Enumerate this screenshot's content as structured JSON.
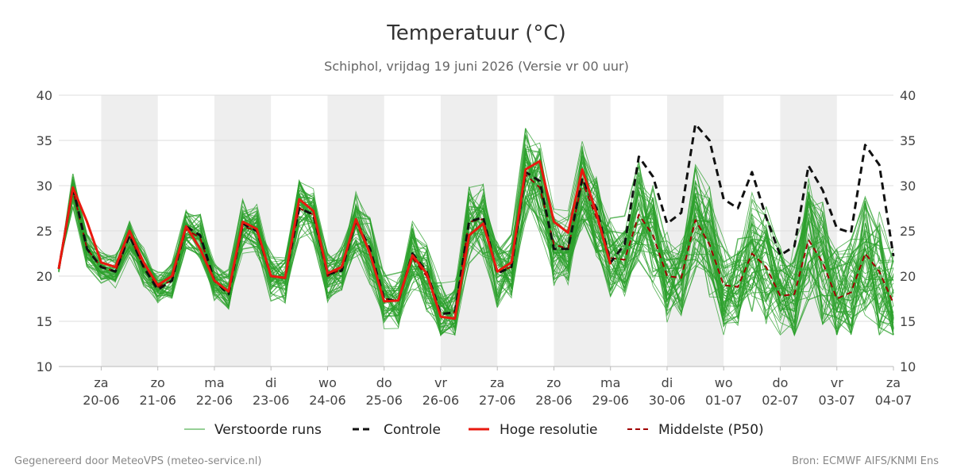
{
  "chart_data": {
    "type": "line",
    "title": "Temperatuur (°C)",
    "subtitle": "Schiphol, vrijdag 19 juni 2026 (Versie vr 00 uur)",
    "ylim": [
      10,
      40
    ],
    "yticks": [
      10,
      15,
      20,
      25,
      30,
      35,
      40
    ],
    "grid": true,
    "legend_position": "bottom",
    "x_start": "2026-06-19T06:00",
    "x_end": "2026-07-04T00:00",
    "time_step_hours": 6,
    "day_ticks": [
      {
        "day": "za",
        "date": "20-06"
      },
      {
        "day": "zo",
        "date": "21-06"
      },
      {
        "day": "ma",
        "date": "22-06"
      },
      {
        "day": "di",
        "date": "23-06"
      },
      {
        "day": "wo",
        "date": "24-06"
      },
      {
        "day": "do",
        "date": "25-06"
      },
      {
        "day": "vr",
        "date": "26-06"
      },
      {
        "day": "za",
        "date": "27-06"
      },
      {
        "day": "zo",
        "date": "28-06"
      },
      {
        "day": "ma",
        "date": "29-06"
      },
      {
        "day": "di",
        "date": "30-06"
      },
      {
        "day": "wo",
        "date": "01-07"
      },
      {
        "day": "do",
        "date": "02-07"
      },
      {
        "day": "vr",
        "date": "03-07"
      },
      {
        "day": "za",
        "date": "04-07"
      }
    ],
    "series": [
      {
        "name": "Controle",
        "color": "#111111",
        "style": "dashed",
        "values": [
          20.8,
          29.8,
          23.0,
          21.0,
          20.5,
          24.5,
          21.0,
          18.5,
          19.5,
          25.5,
          24.5,
          19.5,
          18.0,
          25.8,
          25.0,
          20.0,
          19.8,
          27.5,
          26.8,
          20.2,
          20.6,
          26.2,
          23.0,
          17.5,
          17.2,
          22.5,
          20.5,
          15.8,
          16.0,
          26.0,
          26.5,
          20.3,
          21.0,
          31.5,
          30.5,
          23.0,
          23.0,
          30.8,
          27.5,
          21.5,
          23.5,
          33.2,
          31.0,
          25.8,
          27.0,
          36.8,
          35.0,
          28.5,
          27.5,
          31.5,
          26.5,
          22.3,
          23.3,
          32.2,
          29.5,
          25.3,
          24.8,
          34.5,
          32.3,
          22.2
        ]
      },
      {
        "name": "Hoge resolutie",
        "color": "#e8190f",
        "style": "solid",
        "values": [
          20.8,
          29.8,
          26.0,
          21.5,
          21.0,
          25.0,
          21.5,
          19.0,
          20.0,
          25.5,
          23.0,
          19.5,
          18.3,
          26.0,
          25.2,
          20.0,
          19.8,
          28.5,
          27.2,
          20.3,
          21.0,
          26.3,
          22.5,
          17.2,
          17.3,
          22.3,
          20.3,
          15.5,
          15.3,
          24.5,
          25.8,
          20.5,
          21.5,
          31.8,
          32.7,
          26.0,
          24.8,
          31.8,
          27.0,
          21.3
        ]
      },
      {
        "name": "Middelste (P50)",
        "color": "#a00000",
        "style": "dashed",
        "values": [
          20.8,
          29.5,
          23.0,
          21.0,
          20.5,
          24.5,
          21.0,
          18.8,
          19.5,
          25.2,
          24.2,
          19.5,
          18.3,
          25.5,
          25.0,
          20.0,
          19.8,
          27.5,
          26.8,
          20.0,
          20.8,
          26.0,
          22.5,
          17.5,
          17.3,
          22.0,
          20.0,
          15.8,
          16.0,
          26.0,
          26.3,
          20.5,
          21.0,
          31.2,
          29.8,
          23.5,
          23.0,
          30.5,
          26.5,
          22.0,
          21.8,
          26.8,
          24.5,
          20.0,
          19.8,
          26.2,
          23.5,
          19.0,
          18.8,
          22.5,
          21.0,
          17.8,
          18.0,
          24.0,
          21.5,
          17.5,
          18.2,
          22.5,
          20.5,
          17.0
        ]
      }
    ],
    "ensemble": {
      "name": "Verstoorde runs",
      "color": "#2ca02c",
      "member_count": 50
    }
  },
  "legend": {
    "items": [
      {
        "label": "Verstoorde runs",
        "color": "#2ca02c",
        "style": "thin"
      },
      {
        "label": "Controle",
        "color": "#111111",
        "style": "dashed"
      },
      {
        "label": "Hoge resolutie",
        "color": "#e8190f",
        "style": "solid"
      },
      {
        "label": "Middelste (P50)",
        "color": "#a00000",
        "style": "dashed"
      }
    ]
  },
  "footer": {
    "left": "Gegenereerd door MeteoVPS (meteo-service.nl)",
    "right": "Bron: ECMWF AIFS/KNMI Ens"
  }
}
